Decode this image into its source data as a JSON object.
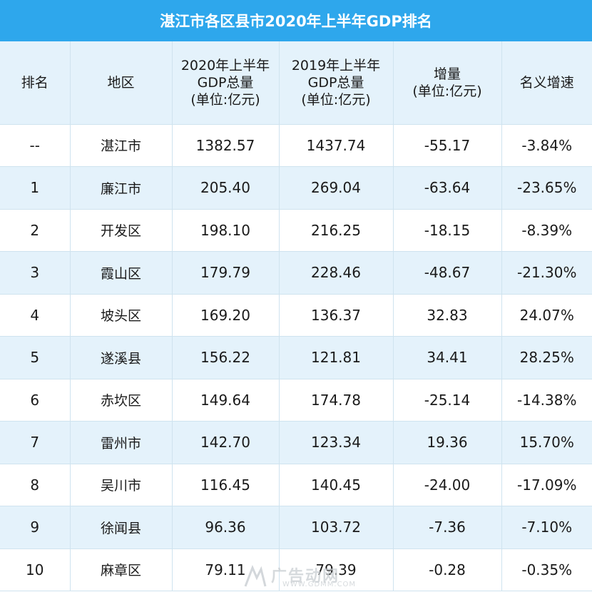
{
  "title": "湛江市各区县市2020年上半年GDP排名",
  "headers": {
    "rank": "排名",
    "region": "地区",
    "gdp2020_l1": "2020年上半年",
    "gdp2020_l2": "GDP总量",
    "gdp2020_l3": "(单位:亿元)",
    "gdp2019_l1": "2019年上半年",
    "gdp2019_l2": "GDP总量",
    "gdp2019_l3": "(单位:亿元)",
    "change_l1": "增量",
    "change_l2": "(单位:亿元)",
    "growth": "名义增速"
  },
  "rows": [
    {
      "rank": "--",
      "region": "湛江市",
      "gdp2020": "1382.57",
      "gdp2019": "1437.74",
      "change": "-55.17",
      "growth": "-3.84%"
    },
    {
      "rank": "1",
      "region": "廉江市",
      "gdp2020": "205.40",
      "gdp2019": "269.04",
      "change": "-63.64",
      "growth": "-23.65%"
    },
    {
      "rank": "2",
      "region": "开发区",
      "gdp2020": "198.10",
      "gdp2019": "216.25",
      "change": "-18.15",
      "growth": "-8.39%"
    },
    {
      "rank": "3",
      "region": "霞山区",
      "gdp2020": "179.79",
      "gdp2019": "228.46",
      "change": "-48.67",
      "growth": "-21.30%"
    },
    {
      "rank": "4",
      "region": "坡头区",
      "gdp2020": "169.20",
      "gdp2019": "136.37",
      "change": "32.83",
      "growth": "24.07%"
    },
    {
      "rank": "5",
      "region": "遂溪县",
      "gdp2020": "156.22",
      "gdp2019": "121.81",
      "change": "34.41",
      "growth": "28.25%"
    },
    {
      "rank": "6",
      "region": "赤坎区",
      "gdp2020": "149.64",
      "gdp2019": "174.78",
      "change": "-25.14",
      "growth": "-14.38%"
    },
    {
      "rank": "7",
      "region": "雷州市",
      "gdp2020": "142.70",
      "gdp2019": "123.34",
      "change": "19.36",
      "growth": "15.70%"
    },
    {
      "rank": "8",
      "region": "吴川市",
      "gdp2020": "116.45",
      "gdp2019": "140.45",
      "change": "-24.00",
      "growth": "-17.09%"
    },
    {
      "rank": "9",
      "region": "徐闻县",
      "gdp2020": "96.36",
      "gdp2019": "103.72",
      "change": "-7.36",
      "growth": "-7.10%"
    },
    {
      "rank": "10",
      "region": "麻章区",
      "gdp2020": "79.11",
      "gdp2019": "79.39",
      "change": "-0.28",
      "growth": "-0.35%"
    }
  ],
  "watermark": {
    "text": "广告动网",
    "url": "WWW.GDMM.COM"
  },
  "colors": {
    "header_bar": "#2ea7ec",
    "row_stripe": "#e4f2fb",
    "grid": "#cfe3ef"
  }
}
